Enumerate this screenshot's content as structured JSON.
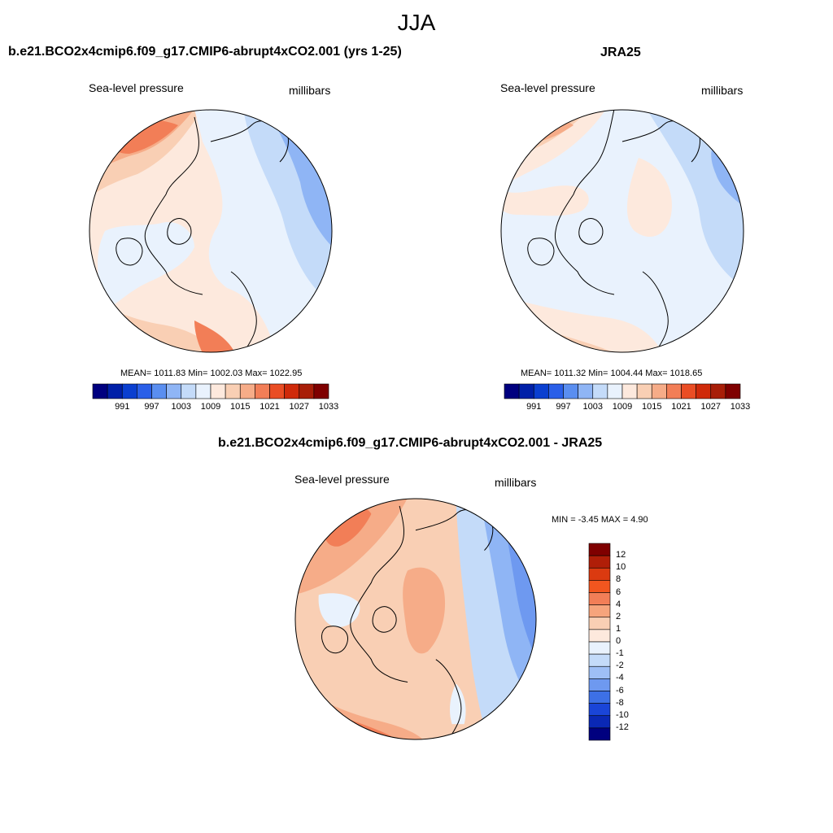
{
  "figure": {
    "title": "JJA"
  },
  "panels": [
    {
      "title": "b.e21.BCO2x4cmip6.f09_g17.CMIP6-abrupt4xCO2.001 (yrs 1-25)",
      "left_label": "Sea-level pressure",
      "right_label": "millibars",
      "stats": "MEAN= 1011.83  Min= 1002.03  Max= 1022.95"
    },
    {
      "title": "JRA25",
      "left_label": "Sea-level pressure",
      "right_label": "millibars",
      "stats": "MEAN= 1011.32  Min= 1004.44  Max= 1018.65"
    },
    {
      "title": "b.e21.BCO2x4cmip6.f09_g17.CMIP6-abrupt4xCO2.001 - JRA25",
      "left_label": "Sea-level pressure",
      "right_label": "millibars",
      "stats": "MIN =  -3.45 MAX =   4.90"
    }
  ],
  "colorbars": {
    "absolute": {
      "labels": [
        "991",
        "997",
        "1003",
        "1009",
        "1015",
        "1021",
        "1027",
        "1033"
      ],
      "colors": [
        "#00007f",
        "#0020a8",
        "#0a3fd0",
        "#2a5fe8",
        "#5a8ef0",
        "#8fb5f5",
        "#c4dbf9",
        "#e9f2fd",
        "#fde9dd",
        "#f9cfb4",
        "#f6ac88",
        "#f27e57",
        "#ea4d24",
        "#cf2a0a",
        "#a81e08",
        "#7f0000"
      ]
    },
    "difference": {
      "labels": [
        "12",
        "10",
        "8",
        "6",
        "4",
        "2",
        "1",
        "0",
        "-1",
        "-2",
        "-4",
        "-6",
        "-8",
        "-10",
        "-12"
      ],
      "colors": [
        "#7f0000",
        "#b01e08",
        "#db3a10",
        "#f2561f",
        "#f27e57",
        "#f6a47c",
        "#f9cfb4",
        "#fde9dd",
        "#e9f2fd",
        "#c4dbf9",
        "#9ebff6",
        "#6e99f0",
        "#3d70e6",
        "#1a45d8",
        "#0a28b5",
        "#00007f"
      ]
    }
  }
}
